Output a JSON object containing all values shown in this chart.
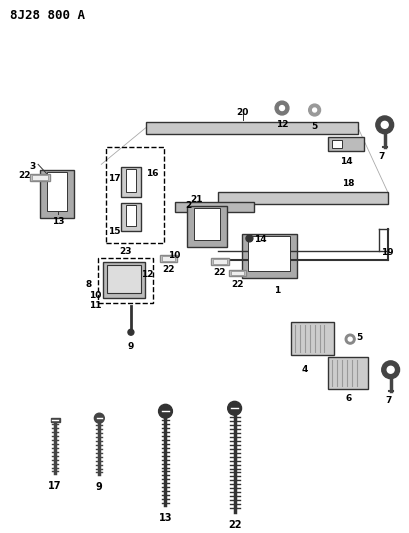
{
  "title": "8J28 800 A",
  "bg_color": "#ffffff",
  "fig_width": 4.09,
  "fig_height": 5.33,
  "dpi": 100
}
